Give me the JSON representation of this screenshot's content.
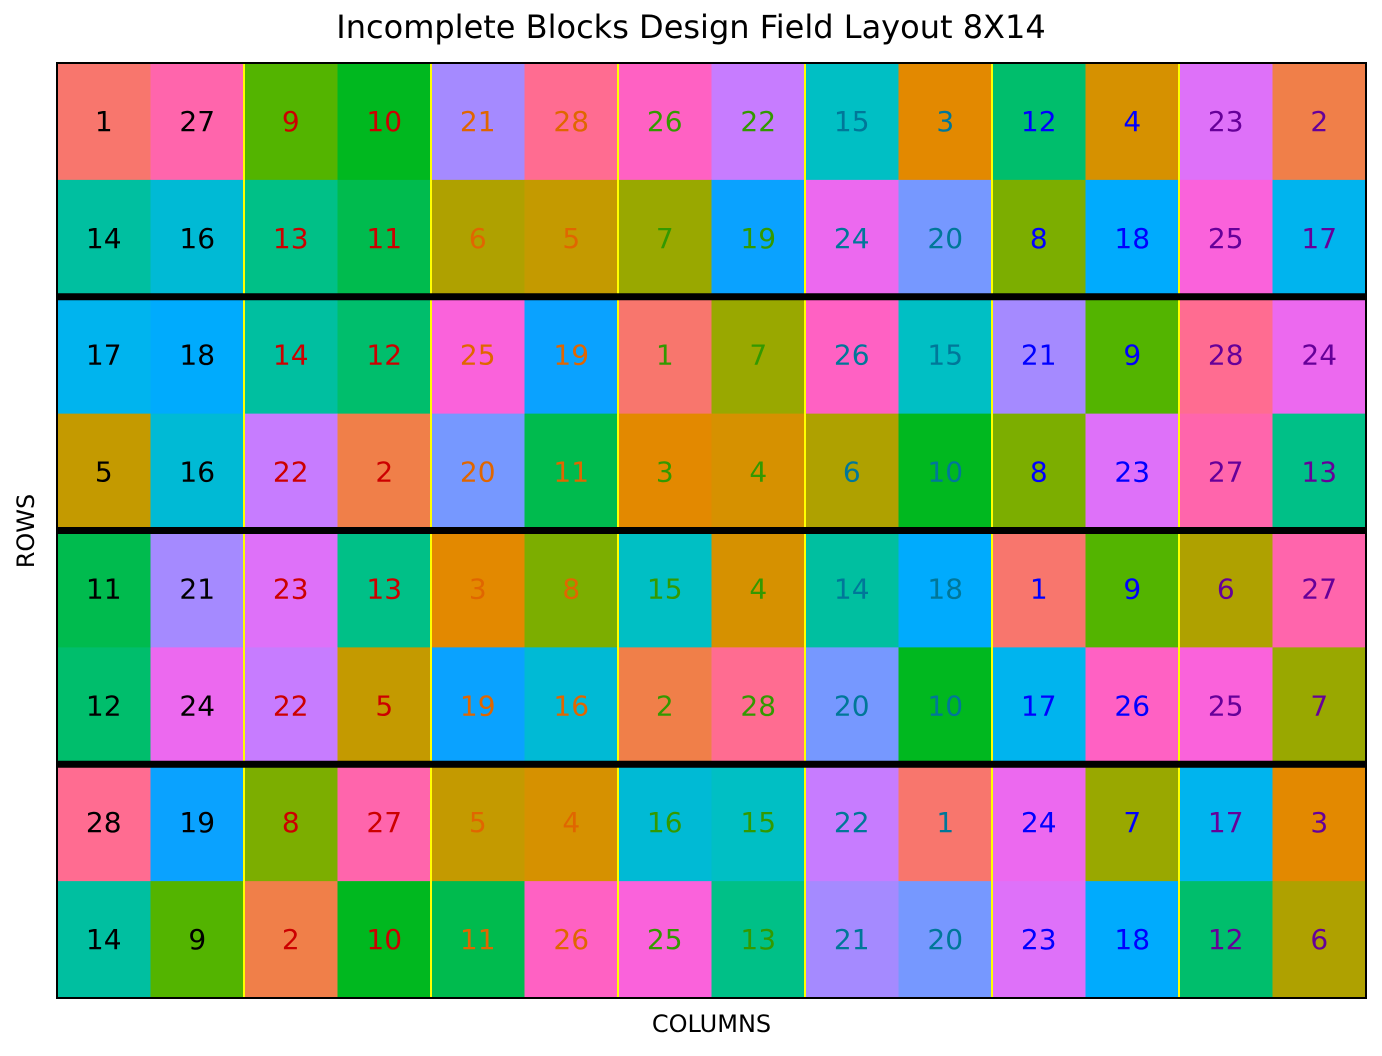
{
  "chart_data": {
    "type": "heatmap",
    "title": "Incomplete Blocks Design Field Layout 8X14",
    "xlabel": "COLUMNS",
    "ylabel": "ROWS",
    "n_rows": 8,
    "n_cols": 14,
    "grid": [
      [
        1,
        27,
        9,
        10,
        21,
        28,
        26,
        22,
        15,
        3,
        12,
        4,
        23,
        2
      ],
      [
        14,
        16,
        13,
        11,
        6,
        5,
        7,
        19,
        24,
        20,
        8,
        18,
        25,
        17
      ],
      [
        17,
        18,
        14,
        12,
        25,
        19,
        1,
        7,
        26,
        15,
        21,
        9,
        28,
        24
      ],
      [
        5,
        16,
        22,
        2,
        20,
        11,
        3,
        4,
        6,
        10,
        8,
        23,
        27,
        13
      ],
      [
        11,
        21,
        23,
        13,
        3,
        8,
        15,
        4,
        14,
        18,
        1,
        9,
        6,
        27
      ],
      [
        12,
        24,
        22,
        5,
        19,
        16,
        2,
        28,
        20,
        10,
        17,
        26,
        25,
        7
      ],
      [
        28,
        19,
        8,
        27,
        5,
        4,
        16,
        15,
        22,
        1,
        24,
        7,
        17,
        3
      ],
      [
        14,
        9,
        2,
        10,
        11,
        26,
        25,
        13,
        21,
        20,
        23,
        18,
        12,
        6
      ]
    ],
    "treatment_colors": {
      "1": "#F8766D",
      "2": "#F07F49",
      "3": "#E38900",
      "4": "#D69100",
      "5": "#C49A00",
      "6": "#AFA100",
      "7": "#99A800",
      "8": "#7CAE00",
      "9": "#53B400",
      "10": "#00B81F",
      "11": "#00BB4E",
      "12": "#00BE6C",
      "13": "#00C087",
      "14": "#00BFA0",
      "15": "#00BFC4",
      "16": "#00BAD5",
      "17": "#00B4EE",
      "18": "#00ABFD",
      "19": "#0AA2FF",
      "20": "#7698FF",
      "21": "#A58AFF",
      "22": "#C77CFF",
      "23": "#DE71F9",
      "24": "#EC69EF",
      "25": "#FA62DB",
      "26": "#FF61C3",
      "27": "#FF65AC",
      "28": "#FF6C91"
    },
    "column_text_colors": [
      "#000000",
      "#000000",
      "#CC0000",
      "#CC0000",
      "#E06600",
      "#E06600",
      "#339900",
      "#339900",
      "#007799",
      "#007799",
      "#0000FF",
      "#0000FF",
      "#660099",
      "#660099"
    ],
    "block_row_boundaries": [
      2,
      4,
      6
    ],
    "block_col_boundaries": [
      2,
      4,
      6,
      8,
      10,
      12
    ],
    "row_separator_color": "#000000",
    "col_separator_color": "#FFFF00",
    "grid_lines": false,
    "legend": "none"
  }
}
